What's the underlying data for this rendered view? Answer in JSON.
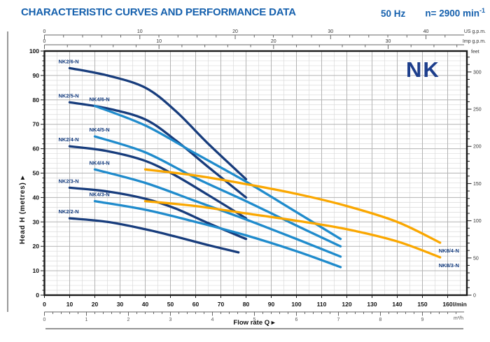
{
  "header": {
    "title": "CHARACTERISTIC CURVES AND PERFORMANCE DATA",
    "frequency": "50 Hz",
    "speed": "n= 2900 min",
    "speed_exponent": "-1"
  },
  "logo_text": "NK",
  "axes": {
    "top_us_gpm": {
      "unit": "US g.p.m.",
      "labels": [
        0,
        10,
        20,
        30,
        40
      ]
    },
    "top_imp_gpm": {
      "unit": "Imp g.p.m.",
      "labels": [
        0,
        10,
        20,
        30
      ]
    },
    "left_metres": {
      "label": "Head H (metres)",
      "arrow": "▸",
      "labels": [
        0,
        10,
        20,
        30,
        40,
        50,
        60,
        70,
        80,
        90,
        100
      ]
    },
    "right_feet": {
      "unit": "feet",
      "labels": [
        0,
        50,
        100,
        150,
        200,
        250,
        300
      ]
    },
    "bottom_lmin": {
      "unit": "l/min",
      "labels": [
        0,
        10,
        20,
        30,
        40,
        50,
        60,
        70,
        80,
        90,
        100,
        110,
        120,
        130,
        140,
        150,
        160
      ]
    },
    "bottom_m3h": {
      "unit": "m³/h",
      "labels": [
        0,
        1,
        2,
        3,
        4,
        5,
        6,
        7,
        8,
        9
      ]
    },
    "xlabel": "Flow rate Q",
    "xlabel_arrow": "▸"
  },
  "colors": {
    "title_blue": "#1560ad",
    "logo_blue": "#1d3e8c",
    "navy_curve": "#173c7c",
    "light_blue_curve": "#1f8bcc",
    "orange_curve": "#faa700",
    "curve_label": "#123a7d",
    "grid_minor": "#dadada",
    "grid_major": "#b3b3b3",
    "axis_black": "#1a1a1a",
    "ruler_gray": "#666666"
  },
  "chart_data": {
    "type": "line",
    "title": "NK pump characteristic curves, head vs flow",
    "xlabel": "Flow rate Q",
    "ylabel": "Head H (metres)",
    "x_unit": "l/min",
    "y_unit": "m",
    "xlim": [
      0,
      167
    ],
    "ylim": [
      0,
      100
    ],
    "grid": true,
    "legend_position": "labels-on-curves",
    "series": [
      {
        "name": "NK2/6-N",
        "color_key": "navy_curve",
        "label_side": "start",
        "points": [
          [
            10,
            93
          ],
          [
            25,
            90
          ],
          [
            40,
            85
          ],
          [
            52,
            75.5
          ],
          [
            65,
            62
          ],
          [
            80,
            47.5
          ]
        ]
      },
      {
        "name": "NK2/5-N",
        "color_key": "navy_curve",
        "label_side": "start",
        "points": [
          [
            10,
            79
          ],
          [
            25,
            76.5
          ],
          [
            40,
            72
          ],
          [
            52,
            63.5
          ],
          [
            65,
            52.5
          ],
          [
            80,
            40
          ]
        ]
      },
      {
        "name": "NK2/4-N",
        "color_key": "navy_curve",
        "label_side": "start",
        "points": [
          [
            10,
            61
          ],
          [
            25,
            59
          ],
          [
            40,
            55
          ],
          [
            52,
            49
          ],
          [
            65,
            41
          ],
          [
            80,
            31.5
          ]
        ]
      },
      {
        "name": "NK2/3-N",
        "color_key": "navy_curve",
        "label_side": "start",
        "points": [
          [
            10,
            44
          ],
          [
            25,
            42.5
          ],
          [
            40,
            39.5
          ],
          [
            52,
            35.5
          ],
          [
            65,
            29.5
          ],
          [
            80,
            23
          ]
        ]
      },
      {
        "name": "NK2/2-N",
        "color_key": "navy_curve",
        "label_side": "start",
        "points": [
          [
            10,
            31.5
          ],
          [
            25,
            30
          ],
          [
            40,
            27
          ],
          [
            52,
            24
          ],
          [
            65,
            20.5
          ],
          [
            77,
            17.5
          ]
        ]
      },
      {
        "name": "NK4/6-N",
        "color_key": "light_blue_curve",
        "label_side": "start",
        "points": [
          [
            20,
            77.5
          ],
          [
            40,
            69.5
          ],
          [
            60,
            58
          ],
          [
            80,
            46.5
          ],
          [
            100,
            34
          ],
          [
            117.5,
            23
          ]
        ]
      },
      {
        "name": "NK4/5-N",
        "color_key": "light_blue_curve",
        "label_side": "start",
        "points": [
          [
            20,
            65
          ],
          [
            40,
            58.5
          ],
          [
            60,
            48
          ],
          [
            80,
            38.5
          ],
          [
            100,
            28.5
          ],
          [
            117.5,
            20
          ]
        ]
      },
      {
        "name": "NK4/4-N",
        "color_key": "light_blue_curve",
        "label_side": "start",
        "points": [
          [
            20,
            51.5
          ],
          [
            40,
            46
          ],
          [
            60,
            38.5
          ],
          [
            80,
            31
          ],
          [
            100,
            23
          ],
          [
            117.5,
            15.8
          ]
        ]
      },
      {
        "name": "NK4/3-N",
        "color_key": "light_blue_curve",
        "label_side": "start",
        "points": [
          [
            20,
            38.5
          ],
          [
            40,
            35
          ],
          [
            60,
            30
          ],
          [
            80,
            24.5
          ],
          [
            100,
            18
          ],
          [
            117.5,
            11.5
          ]
        ]
      },
      {
        "name": "NK8/4-N",
        "color_key": "orange_curve",
        "label_side": "end",
        "points": [
          [
            40,
            51.5
          ],
          [
            60,
            49
          ],
          [
            80,
            45.5
          ],
          [
            100,
            41.5
          ],
          [
            120,
            36.5
          ],
          [
            140,
            30
          ],
          [
            157,
            21.5
          ]
        ]
      },
      {
        "name": "NK8/3-N",
        "color_key": "orange_curve",
        "label_side": "end",
        "points": [
          [
            40,
            38.5
          ],
          [
            60,
            36.5
          ],
          [
            80,
            33.5
          ],
          [
            100,
            30.5
          ],
          [
            120,
            27
          ],
          [
            140,
            22
          ],
          [
            157,
            15.5
          ]
        ]
      }
    ]
  }
}
